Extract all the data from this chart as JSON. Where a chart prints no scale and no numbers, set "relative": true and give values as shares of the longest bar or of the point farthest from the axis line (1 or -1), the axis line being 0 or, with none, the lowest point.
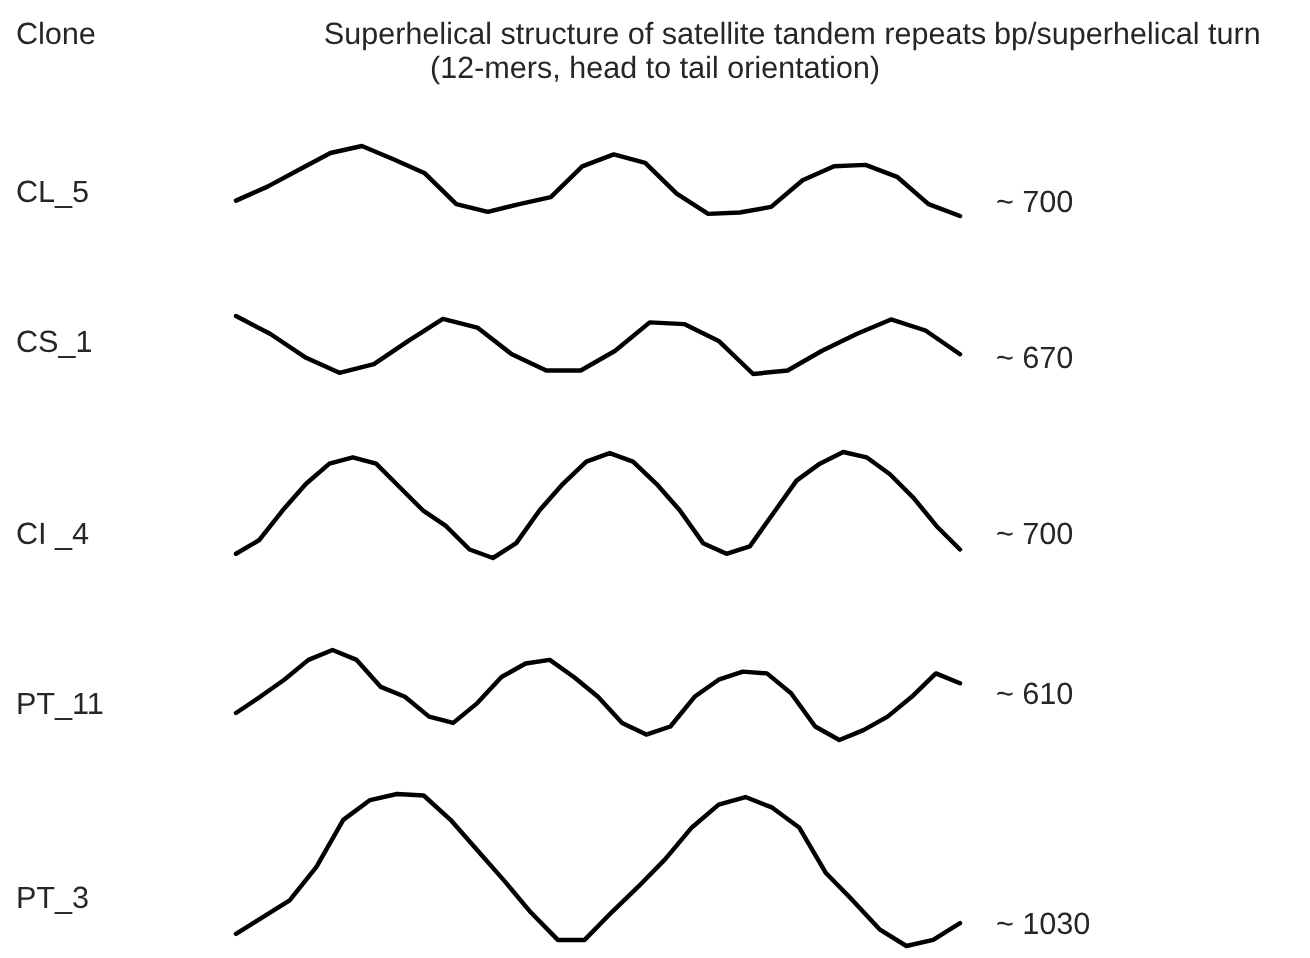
{
  "chart_data": [
    {
      "type": "line",
      "relative": true,
      "title": "Superhelical structure of satellite tandem repeats",
      "subtitle": "(12-mers, head to tail orientation)",
      "ylabel": "CL_5",
      "annotations": [
        "Clone",
        "bp/superhelical turn",
        "~ 700"
      ],
      "categories": [
        null,
        null,
        null,
        null,
        null,
        null,
        null,
        null,
        null,
        null,
        null,
        null,
        null,
        null,
        null,
        null,
        null,
        null,
        null,
        null,
        null,
        null,
        null,
        null
      ],
      "series": [
        {
          "color": "#000000",
          "values": [
            0.22,
            0.42,
            0.66,
            0.9,
            1,
            0.81,
            0.61,
            0.17,
            0.06,
            0.17,
            0.27,
            0.71,
            0.88,
            0.76,
            0.32,
            0.03,
            0.05,
            0.13,
            0.51,
            0.71,
            0.73,
            0.56,
            0.17,
            0
          ]
        }
      ]
    },
    {
      "type": "line",
      "relative": true,
      "ylabel": "CS_1",
      "annotations": [
        "~ 670"
      ],
      "categories": [
        null,
        null,
        null,
        null,
        null,
        null,
        null,
        null,
        null,
        null,
        null,
        null,
        null,
        null,
        null,
        null,
        null,
        null,
        null,
        null,
        null,
        null
      ],
      "series": [
        {
          "color": "#000000",
          "values": [
            1,
            0.69,
            0.29,
            0.02,
            0.17,
            0.57,
            0.95,
            0.8,
            0.34,
            0.06,
            0.06,
            0.4,
            0.89,
            0.86,
            0.57,
            0,
            0.06,
            0.4,
            0.69,
            0.94,
            0.75,
            0.34
          ]
        }
      ]
    },
    {
      "type": "line",
      "relative": true,
      "ylabel": "CI _4",
      "annotations": [
        "~ 700"
      ],
      "categories": [
        null,
        null,
        null,
        null,
        null,
        null,
        null,
        null,
        null,
        null,
        null,
        null,
        null,
        null,
        null,
        null,
        null,
        null,
        null,
        null,
        null,
        null,
        null,
        null,
        null,
        null,
        null,
        null,
        null,
        null,
        null,
        null
      ],
      "series": [
        {
          "color": "#000000",
          "values": [
            0.04,
            0.17,
            0.45,
            0.7,
            0.89,
            0.95,
            0.89,
            0.67,
            0.45,
            0.3,
            0.08,
            0,
            0.14,
            0.45,
            0.7,
            0.91,
            0.99,
            0.91,
            0.7,
            0.45,
            0.14,
            0.04,
            0.11,
            0.42,
            0.73,
            0.89,
            1,
            0.95,
            0.79,
            0.57,
            0.3,
            0.08
          ]
        }
      ]
    },
    {
      "type": "line",
      "relative": true,
      "ylabel": "PT_11",
      "annotations": [
        "~ 610"
      ],
      "categories": [
        null,
        null,
        null,
        null,
        null,
        null,
        null,
        null,
        null,
        null,
        null,
        null,
        null,
        null,
        null,
        null,
        null,
        null,
        null,
        null,
        null,
        null,
        null,
        null,
        null,
        null,
        null,
        null,
        null,
        null,
        null
      ],
      "series": [
        {
          "color": "#000000",
          "values": [
            0.3,
            0.48,
            0.67,
            0.89,
            1,
            0.89,
            0.59,
            0.48,
            0.26,
            0.19,
            0.41,
            0.7,
            0.85,
            0.89,
            0.7,
            0.48,
            0.19,
            0.06,
            0.15,
            0.48,
            0.67,
            0.76,
            0.74,
            0.52,
            0.15,
            0,
            0.11,
            0.26,
            0.48,
            0.74,
            0.63
          ]
        }
      ]
    },
    {
      "type": "line",
      "relative": true,
      "ylabel": "PT_3",
      "annotations": [
        "~ 1030"
      ],
      "categories": [
        null,
        null,
        null,
        null,
        null,
        null,
        null,
        null,
        null,
        null,
        null,
        null,
        null,
        null,
        null,
        null,
        null,
        null,
        null,
        null,
        null,
        null,
        null,
        null,
        null,
        null,
        null,
        null
      ],
      "series": [
        {
          "color": "#000000",
          "values": [
            0.08,
            0.19,
            0.3,
            0.52,
            0.83,
            0.96,
            1,
            0.99,
            0.83,
            0.63,
            0.43,
            0.22,
            0.04,
            0.04,
            0.22,
            0.39,
            0.57,
            0.78,
            0.93,
            0.98,
            0.91,
            0.78,
            0.48,
            0.3,
            0.11,
            0,
            0.04,
            0.15
          ]
        }
      ]
    }
  ]
}
